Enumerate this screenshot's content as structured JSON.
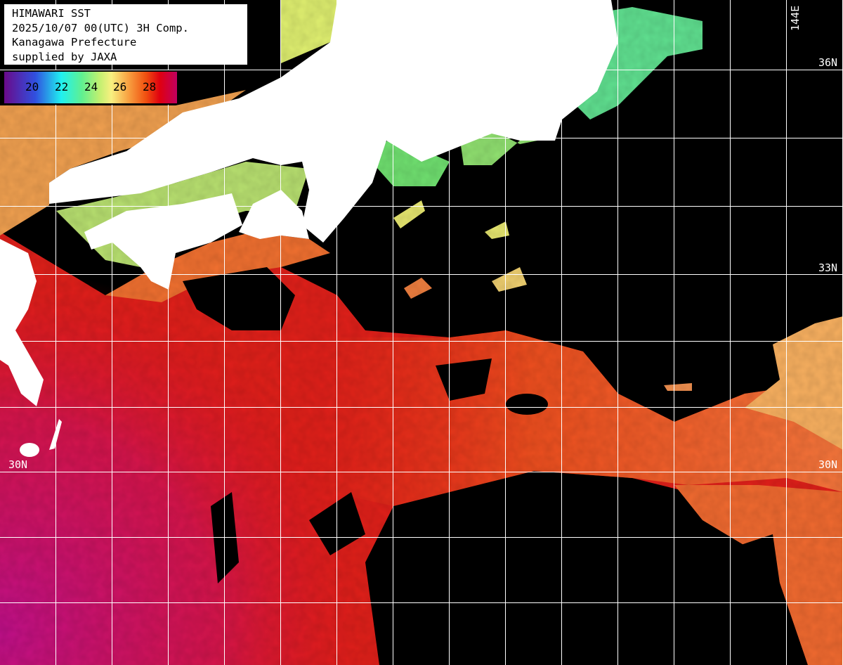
{
  "header": {
    "title": "HIMAWARI SST",
    "datetime": "2025/10/07 00(UTC) 3H Comp.",
    "organization": "Kanagawa Prefecture",
    "credit": "supplied by JAXA"
  },
  "legend": {
    "labels": [
      "20",
      "22",
      "24",
      "26",
      "28"
    ],
    "colors": [
      "#6a0a8a",
      "#3050e0",
      "#20f0f0",
      "#60f090",
      "#f8f080",
      "#f8a040",
      "#f05010",
      "#e00010",
      "#c00060"
    ]
  },
  "grid": {
    "lat_labels": {
      "n36": "36N",
      "n33": "33N",
      "n30_left": "30N",
      "n30_right": "30N"
    },
    "lon_labels": {
      "e144": "144E"
    }
  },
  "colors": {
    "land": "#ffffff",
    "no_data_cloud": "#000000",
    "grid": "#ffffff"
  }
}
